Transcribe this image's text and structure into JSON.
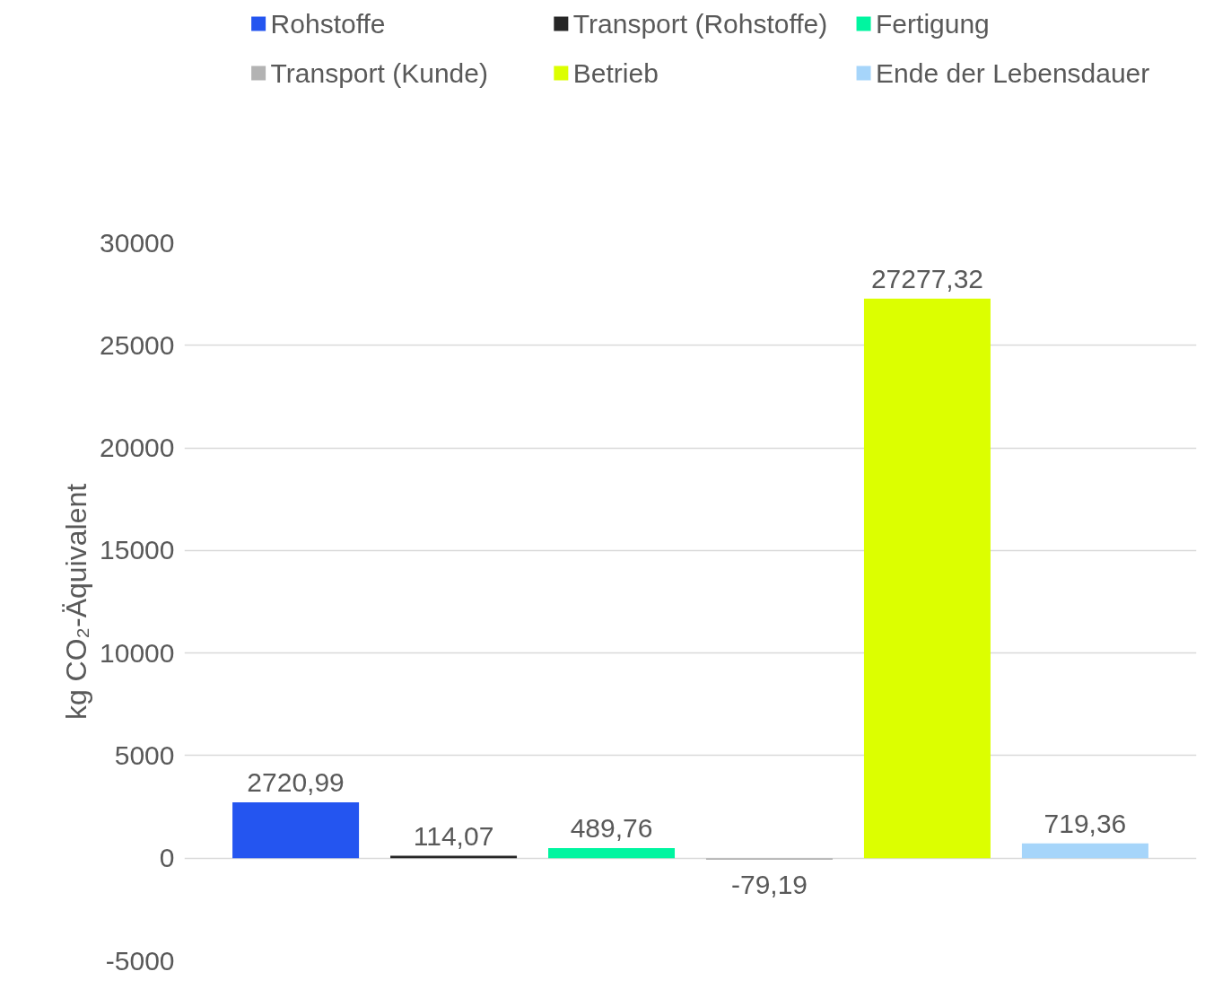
{
  "chart_data": {
    "type": "bar",
    "ylabel": "kg CO₂-Äquivalent",
    "categories": [
      null
    ],
    "ylim": [
      -5000,
      30000
    ],
    "yticks": [
      -5000,
      0,
      5000,
      10000,
      15000,
      20000,
      25000,
      30000
    ],
    "grid": "y",
    "legend": "top",
    "tick_labels": "y",
    "series": [
      {
        "name": "Rohstoffe",
        "color": "#2455f0",
        "values": [
          2720.99
        ],
        "value_labels": [
          "2720,99"
        ]
      },
      {
        "name": "Transport (Rohstoffe)",
        "color": "#262626",
        "values": [
          114.07
        ],
        "value_labels": [
          "114,07"
        ]
      },
      {
        "name": "Fertigung",
        "color": "#00f5a0",
        "values": [
          489.76
        ],
        "value_labels": [
          "489,76"
        ]
      },
      {
        "name": "Transport (Kunde)",
        "color": "#b3b3b3",
        "values": [
          -79.19
        ],
        "value_labels": [
          "-79,19"
        ]
      },
      {
        "name": "Betrieb",
        "color": "#dcff00",
        "values": [
          27277.32
        ],
        "value_labels": [
          "27277,32"
        ]
      },
      {
        "name": "Ende der Lebensdauer",
        "color": "#a6d5fa",
        "values": [
          719.36
        ],
        "value_labels": [
          "719,36"
        ]
      }
    ]
  }
}
